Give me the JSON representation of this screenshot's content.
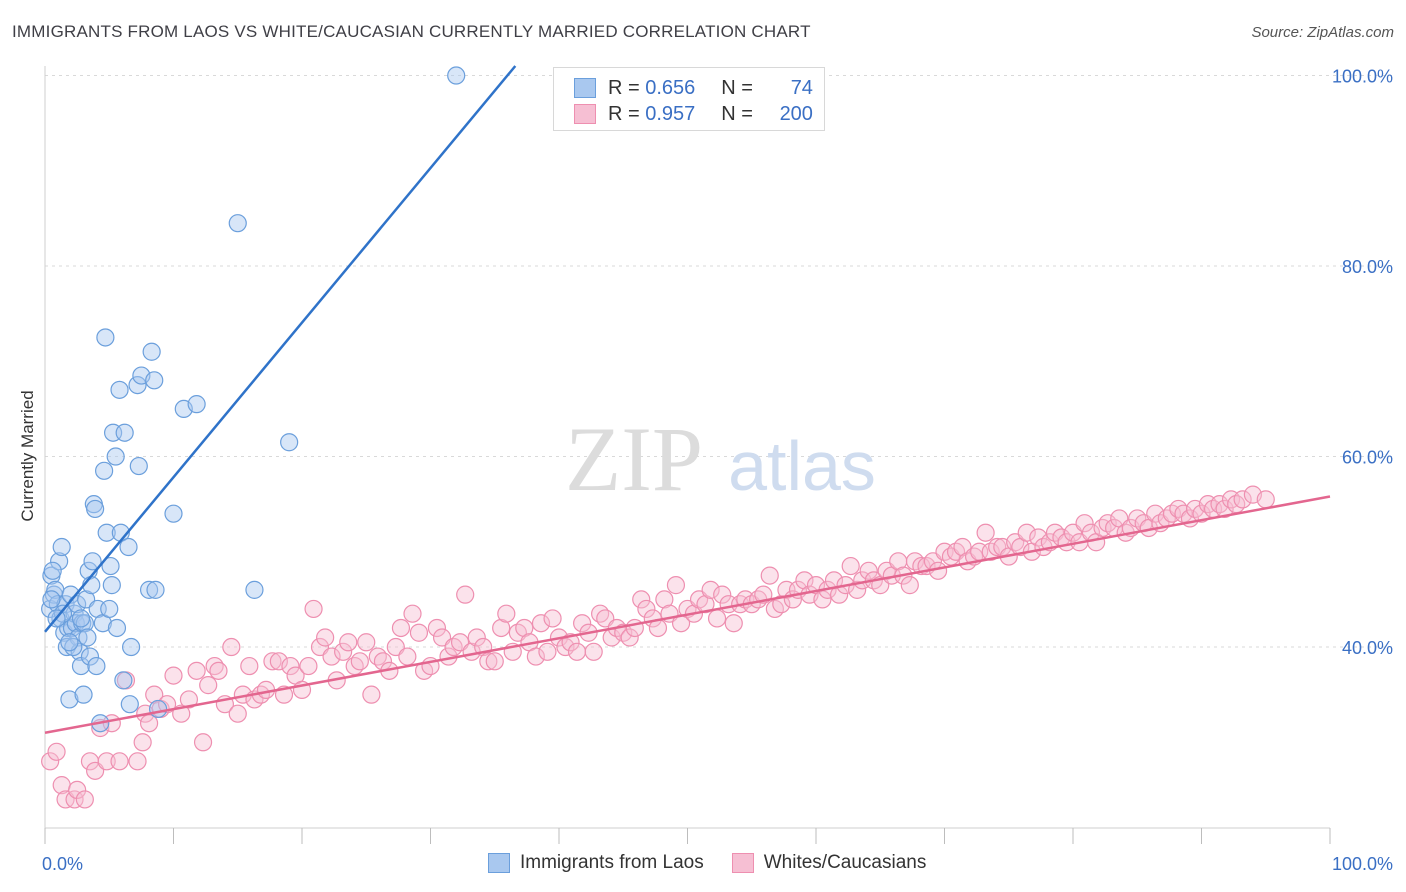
{
  "header": {
    "title": "IMMIGRANTS FROM LAOS VS WHITE/CAUCASIAN CURRENTLY MARRIED CORRELATION CHART",
    "source": "Source: ZipAtlas.com"
  },
  "watermark": {
    "zip": "ZIP",
    "atlas": "atlas"
  },
  "legend": {
    "rows": [
      {
        "r_label": "R =",
        "r_value": "0.656",
        "n_label": "N =",
        "n_value": "74"
      },
      {
        "r_label": "R =",
        "r_value": "0.957",
        "n_label": "N =",
        "n_value": "200"
      }
    ]
  },
  "colors": {
    "blue": "#6b9fdc",
    "blue_fill": "#a9c8ef",
    "blue_line": "#2f73c9",
    "pink": "#ee8fb0",
    "pink_fill": "#f6bfd3",
    "pink_line": "#e3668f",
    "tick_label": "#3a6fc4",
    "grid": "#d9d9d9"
  },
  "chart_data": {
    "type": "scatter",
    "xlabel": "",
    "ylabel": "Currently Married",
    "xlim": [
      0,
      100
    ],
    "ylim": [
      21,
      101
    ],
    "x_tick_labels": [
      "0.0%",
      "100.0%"
    ],
    "y_ticks": [
      40,
      60,
      80,
      100
    ],
    "y_tick_labels": [
      "40.0%",
      "60.0%",
      "80.0%",
      "100.0%"
    ],
    "grid": true,
    "legend_position": "bottom",
    "series": [
      {
        "name": "Immigrants from Laos",
        "trend": {
          "x": [
            0,
            36.6
          ],
          "y": [
            41.6,
            101
          ]
        },
        "points": [
          [
            0.4,
            44
          ],
          [
            0.5,
            47.5
          ],
          [
            0.7,
            45.5
          ],
          [
            0.8,
            46
          ],
          [
            1,
            44.5
          ],
          [
            1.1,
            49
          ],
          [
            1.2,
            43
          ],
          [
            1.3,
            50.5
          ],
          [
            1.5,
            41.5
          ],
          [
            1.6,
            44.5
          ],
          [
            1.7,
            40
          ],
          [
            1.8,
            42
          ],
          [
            1.9,
            34.5
          ],
          [
            2,
            45.5
          ],
          [
            2.1,
            42
          ],
          [
            2.3,
            43.5
          ],
          [
            2.4,
            42.5
          ],
          [
            2.5,
            44.5
          ],
          [
            2.6,
            41
          ],
          [
            2.7,
            39.5
          ],
          [
            2.8,
            38
          ],
          [
            2.9,
            42.5
          ],
          [
            3,
            35
          ],
          [
            3.1,
            42.5
          ],
          [
            3.2,
            45
          ],
          [
            3.4,
            48
          ],
          [
            3.5,
            39
          ],
          [
            3.6,
            46.5
          ],
          [
            3.7,
            49
          ],
          [
            3.8,
            55
          ],
          [
            3.9,
            54.5
          ],
          [
            4,
            38
          ],
          [
            4.1,
            44
          ],
          [
            4.3,
            32
          ],
          [
            4.5,
            42.5
          ],
          [
            4.6,
            58.5
          ],
          [
            4.7,
            72.5
          ],
          [
            4.8,
            52
          ],
          [
            5,
            44
          ],
          [
            5.1,
            48.5
          ],
          [
            5.2,
            46.5
          ],
          [
            5.3,
            62.5
          ],
          [
            5.5,
            60
          ],
          [
            5.6,
            42
          ],
          [
            5.8,
            67
          ],
          [
            5.9,
            52
          ],
          [
            6.1,
            36.5
          ],
          [
            6.2,
            62.5
          ],
          [
            6.5,
            50.5
          ],
          [
            6.6,
            34
          ],
          [
            6.7,
            40
          ],
          [
            7.2,
            67.5
          ],
          [
            7.3,
            59
          ],
          [
            7.5,
            68.5
          ],
          [
            8.1,
            46
          ],
          [
            8.3,
            71
          ],
          [
            8.5,
            68
          ],
          [
            8.6,
            46
          ],
          [
            8.8,
            33.5
          ],
          [
            10,
            54
          ],
          [
            10.8,
            65
          ],
          [
            11.8,
            65.5
          ],
          [
            15,
            84.5
          ],
          [
            16.3,
            46
          ],
          [
            19,
            61.5
          ],
          [
            32,
            100
          ],
          [
            0.6,
            48
          ],
          [
            1.4,
            43.5
          ],
          [
            2.2,
            40
          ],
          [
            3.3,
            41
          ],
          [
            0.9,
            43
          ],
          [
            1.9,
            40.5
          ],
          [
            0.5,
            45
          ],
          [
            2.8,
            43
          ]
        ]
      },
      {
        "name": "Whites/Caucasians",
        "trend": {
          "x": [
            0,
            100
          ],
          "y": [
            31,
            55.8
          ]
        },
        "points": [
          [
            0.4,
            28
          ],
          [
            0.9,
            29
          ],
          [
            1.3,
            25.5
          ],
          [
            1.6,
            24
          ],
          [
            2.3,
            24
          ],
          [
            2.5,
            25
          ],
          [
            3.1,
            24
          ],
          [
            3.5,
            28
          ],
          [
            3.9,
            27
          ],
          [
            4.3,
            31.5
          ],
          [
            4.8,
            28
          ],
          [
            5.2,
            32
          ],
          [
            5.8,
            28
          ],
          [
            6.3,
            36.5
          ],
          [
            7.2,
            28
          ],
          [
            7.6,
            30
          ],
          [
            7.8,
            33
          ],
          [
            8.1,
            32
          ],
          [
            8.5,
            35
          ],
          [
            9,
            33.5
          ],
          [
            9.5,
            34
          ],
          [
            10,
            37
          ],
          [
            10.6,
            33
          ],
          [
            11.2,
            34.5
          ],
          [
            11.8,
            37.5
          ],
          [
            12.3,
            30
          ],
          [
            12.7,
            36
          ],
          [
            13.2,
            38
          ],
          [
            13.5,
            37.5
          ],
          [
            14,
            34
          ],
          [
            14.5,
            40
          ],
          [
            15,
            33
          ],
          [
            15.4,
            35
          ],
          [
            15.9,
            38
          ],
          [
            16.3,
            34.5
          ],
          [
            16.8,
            35
          ],
          [
            17.2,
            35.5
          ],
          [
            17.7,
            38.5
          ],
          [
            18.2,
            38.5
          ],
          [
            18.6,
            35
          ],
          [
            19.1,
            38
          ],
          [
            19.5,
            37
          ],
          [
            20,
            35.5
          ],
          [
            20.5,
            38
          ],
          [
            20.9,
            44
          ],
          [
            21.4,
            40
          ],
          [
            21.8,
            41
          ],
          [
            22.3,
            39
          ],
          [
            22.7,
            36.5
          ],
          [
            23.2,
            39.5
          ],
          [
            23.6,
            40.5
          ],
          [
            24.1,
            38
          ],
          [
            24.5,
            38.5
          ],
          [
            25,
            40.5
          ],
          [
            25.4,
            35
          ],
          [
            25.9,
            39
          ],
          [
            26.3,
            38.5
          ],
          [
            26.8,
            37.5
          ],
          [
            27.3,
            40
          ],
          [
            27.7,
            42
          ],
          [
            28.2,
            39
          ],
          [
            28.6,
            43.5
          ],
          [
            29.1,
            41.5
          ],
          [
            29.5,
            37.5
          ],
          [
            30,
            38
          ],
          [
            30.5,
            42
          ],
          [
            30.9,
            41
          ],
          [
            31.4,
            39
          ],
          [
            31.8,
            40
          ],
          [
            32.3,
            40.5
          ],
          [
            32.7,
            45.5
          ],
          [
            33.2,
            39.5
          ],
          [
            33.6,
            41
          ],
          [
            34.1,
            40
          ],
          [
            34.5,
            38.5
          ],
          [
            35,
            38.5
          ],
          [
            35.5,
            42
          ],
          [
            35.9,
            43.5
          ],
          [
            36.4,
            39.5
          ],
          [
            36.8,
            41.5
          ],
          [
            37.3,
            42
          ],
          [
            37.7,
            40.5
          ],
          [
            38.2,
            39
          ],
          [
            38.6,
            42.5
          ],
          [
            39.1,
            39.5
          ],
          [
            39.5,
            43
          ],
          [
            40,
            41
          ],
          [
            40.5,
            40
          ],
          [
            40.9,
            40.5
          ],
          [
            41.4,
            39.5
          ],
          [
            41.8,
            42.5
          ],
          [
            42.3,
            41.5
          ],
          [
            42.7,
            39.5
          ],
          [
            43.2,
            43.5
          ],
          [
            43.6,
            43
          ],
          [
            44.1,
            41
          ],
          [
            44.5,
            42
          ],
          [
            45,
            41.5
          ],
          [
            45.5,
            41
          ],
          [
            45.9,
            42
          ],
          [
            46.4,
            45
          ],
          [
            46.8,
            44
          ],
          [
            47.3,
            43
          ],
          [
            47.7,
            42
          ],
          [
            48.2,
            45
          ],
          [
            48.6,
            43.5
          ],
          [
            49.1,
            46.5
          ],
          [
            49.5,
            42.5
          ],
          [
            50,
            44
          ],
          [
            50.5,
            43.5
          ],
          [
            50.9,
            45
          ],
          [
            51.4,
            44.5
          ],
          [
            51.8,
            46
          ],
          [
            52.3,
            43
          ],
          [
            52.7,
            45.5
          ],
          [
            53.2,
            44.5
          ],
          [
            53.6,
            42.5
          ],
          [
            54.1,
            44.5
          ],
          [
            54.5,
            45
          ],
          [
            55,
            44.5
          ],
          [
            55.5,
            45
          ],
          [
            55.9,
            45.5
          ],
          [
            56.4,
            47.5
          ],
          [
            56.8,
            44
          ],
          [
            57.3,
            44.5
          ],
          [
            57.7,
            46
          ],
          [
            58.2,
            45
          ],
          [
            58.6,
            46
          ],
          [
            59.1,
            47
          ],
          [
            59.5,
            45.5
          ],
          [
            60,
            46.5
          ],
          [
            60.5,
            45
          ],
          [
            60.9,
            46
          ],
          [
            61.4,
            47
          ],
          [
            61.8,
            45.5
          ],
          [
            62.3,
            46.5
          ],
          [
            62.7,
            48.5
          ],
          [
            63.2,
            46
          ],
          [
            63.6,
            47
          ],
          [
            64.1,
            48
          ],
          [
            64.5,
            47
          ],
          [
            65,
            46.5
          ],
          [
            65.5,
            48
          ],
          [
            65.9,
            47.5
          ],
          [
            66.4,
            49
          ],
          [
            66.8,
            47.5
          ],
          [
            67.3,
            46.5
          ],
          [
            67.7,
            49
          ],
          [
            68.2,
            48.5
          ],
          [
            68.6,
            48.5
          ],
          [
            69.1,
            49
          ],
          [
            69.5,
            48
          ],
          [
            70,
            50
          ],
          [
            70.5,
            49.5
          ],
          [
            70.9,
            50
          ],
          [
            71.4,
            50.5
          ],
          [
            71.8,
            49
          ],
          [
            72.3,
            49.5
          ],
          [
            72.7,
            50
          ],
          [
            73.2,
            52
          ],
          [
            73.6,
            50
          ],
          [
            74.1,
            50.5
          ],
          [
            74.5,
            50.5
          ],
          [
            75,
            49.5
          ],
          [
            75.5,
            51
          ],
          [
            75.9,
            50.5
          ],
          [
            76.4,
            52
          ],
          [
            76.8,
            50
          ],
          [
            77.3,
            51.5
          ],
          [
            77.7,
            50.5
          ],
          [
            78.2,
            51
          ],
          [
            78.6,
            52
          ],
          [
            79.1,
            51.5
          ],
          [
            79.5,
            51
          ],
          [
            80,
            52
          ],
          [
            80.5,
            51
          ],
          [
            80.9,
            53
          ],
          [
            81.4,
            52
          ],
          [
            81.8,
            51
          ],
          [
            82.3,
            52.5
          ],
          [
            82.7,
            53
          ],
          [
            83.2,
            52.5
          ],
          [
            83.6,
            53.5
          ],
          [
            84.1,
            52
          ],
          [
            84.5,
            52.5
          ],
          [
            85,
            53.5
          ],
          [
            85.5,
            53
          ],
          [
            85.9,
            52.5
          ],
          [
            86.4,
            54
          ],
          [
            86.8,
            53
          ],
          [
            87.3,
            53.5
          ],
          [
            87.7,
            54
          ],
          [
            88.2,
            54.5
          ],
          [
            88.6,
            54
          ],
          [
            89.1,
            53.5
          ],
          [
            89.5,
            54.5
          ],
          [
            90,
            54
          ],
          [
            90.5,
            55
          ],
          [
            90.9,
            54.5
          ],
          [
            91.4,
            55
          ],
          [
            91.8,
            54.5
          ],
          [
            92.3,
            55.5
          ],
          [
            92.7,
            55
          ],
          [
            93.2,
            55.5
          ],
          [
            94,
            56
          ],
          [
            95,
            55.5
          ]
        ]
      }
    ]
  }
}
